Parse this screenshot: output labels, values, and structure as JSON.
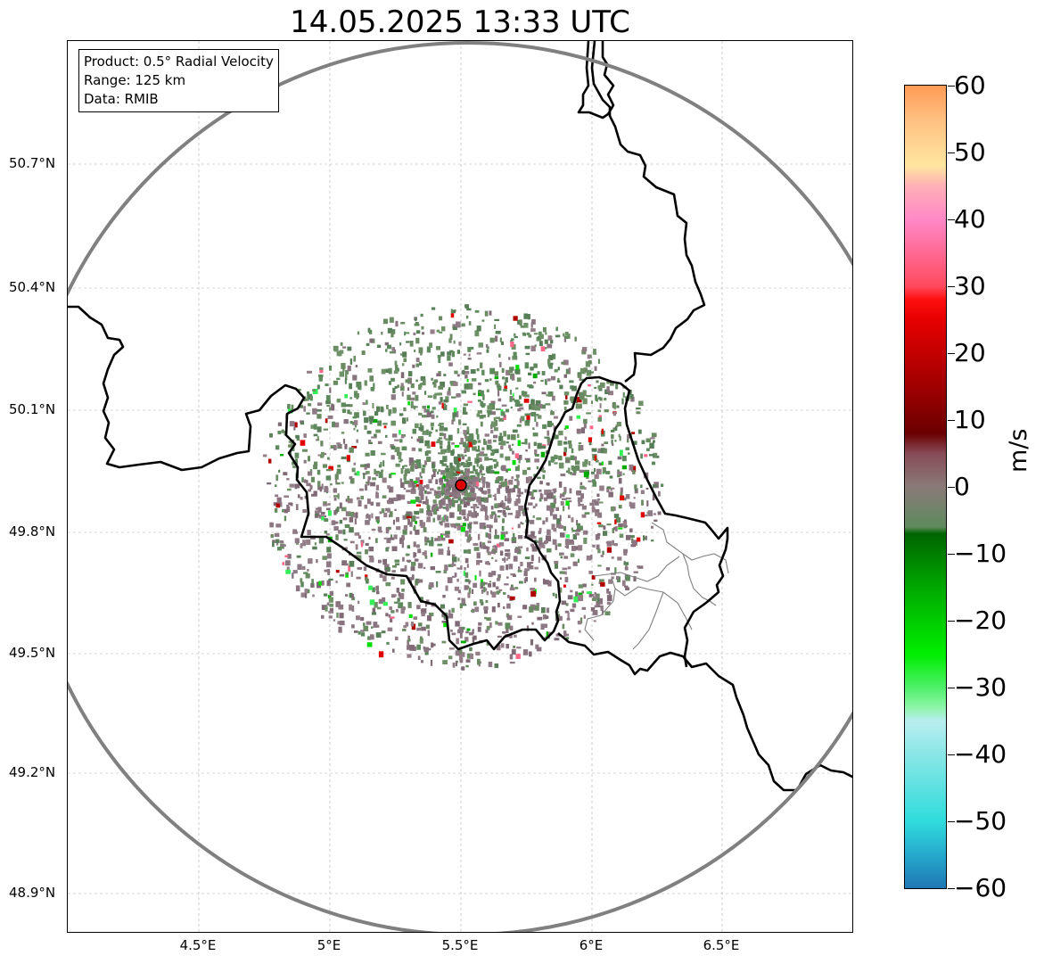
{
  "title": "14.05.2025 13:33 UTC",
  "info": {
    "product": "Product: 0.5° Radial Velocity",
    "range": "Range: 125 km",
    "data": "Data: RMIB"
  },
  "axes": {
    "lat_ticks": [
      "50.7°N",
      "50.4°N",
      "50.1°N",
      "49.8°N",
      "49.5°N",
      "49.2°N",
      "48.9°N"
    ],
    "lon_ticks": [
      "4.5°E",
      "5°E",
      "5.5°E",
      "6°E",
      "6.5°E"
    ],
    "lat_range": [
      48.8,
      50.99
    ],
    "lon_range": [
      4.0,
      7.0
    ]
  },
  "radar": {
    "lat": 49.91,
    "lon": 5.5,
    "range_km": 125
  },
  "colorbar": {
    "unit": "m/s",
    "min": -60,
    "max": 60,
    "ticks": [
      "60",
      "50",
      "40",
      "30",
      "20",
      "10",
      "0",
      "−10",
      "−20",
      "−30",
      "−40",
      "−50",
      "−60"
    ],
    "stops": [
      {
        "v": -60,
        "c": "#1f77b4"
      },
      {
        "v": -55,
        "c": "#26a9cc"
      },
      {
        "v": -50,
        "c": "#2fdcdc"
      },
      {
        "v": -40,
        "c": "#8ae6e6"
      },
      {
        "v": -35,
        "c": "#b9eef0"
      },
      {
        "v": -33,
        "c": "#8ef5a8"
      },
      {
        "v": -30,
        "c": "#4ef06a"
      },
      {
        "v": -25,
        "c": "#00ee00"
      },
      {
        "v": -15,
        "c": "#00a800"
      },
      {
        "v": -7,
        "c": "#006400"
      },
      {
        "v": -6,
        "c": "#5e8a5e"
      },
      {
        "v": 0,
        "c": "#8a7a78"
      },
      {
        "v": 5,
        "c": "#874b58"
      },
      {
        "v": 8,
        "c": "#6b0000"
      },
      {
        "v": 15,
        "c": "#a00000"
      },
      {
        "v": 25,
        "c": "#e60000"
      },
      {
        "v": 28,
        "c": "#ff0f0f"
      },
      {
        "v": 30,
        "c": "#ff4a5e"
      },
      {
        "v": 40,
        "c": "#ff88c8"
      },
      {
        "v": 45,
        "c": "#ffb0b6"
      },
      {
        "v": 48,
        "c": "#ffe6a0"
      },
      {
        "v": 55,
        "c": "#ffc080"
      },
      {
        "v": 60,
        "c": "#ff9a55"
      }
    ]
  },
  "colors": {
    "range_ring": "#808080",
    "border": "#000000",
    "district_lines": "#808080",
    "radar_marker": "#e00000",
    "echo_green": "#5e8a5e",
    "echo_mauve": "#8a7480"
  }
}
